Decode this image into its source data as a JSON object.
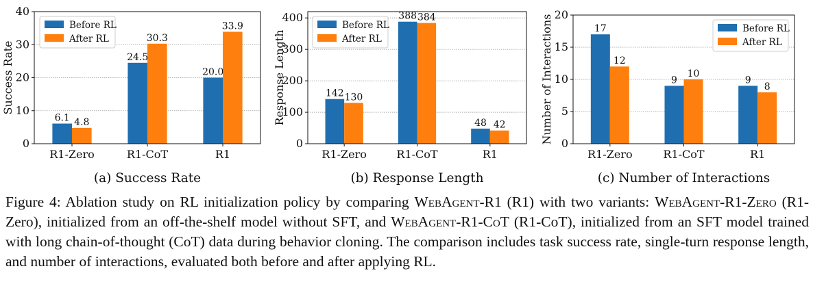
{
  "chart_data": [
    {
      "type": "bar",
      "categories": [
        "R1-Zero",
        "R1-CoT",
        "R1"
      ],
      "series": [
        {
          "name": "Before RL",
          "values": [
            6.1,
            24.5,
            20.0
          ],
          "labels": [
            "6.1",
            "24.5",
            "20.0"
          ],
          "color": "#1f6fb0"
        },
        {
          "name": "After RL",
          "values": [
            4.8,
            30.3,
            33.9
          ],
          "labels": [
            "4.8",
            "30.3",
            "33.9"
          ],
          "color": "#ff7f0e"
        }
      ],
      "ylabel": "Success Rate",
      "ylim": [
        0,
        40
      ],
      "yticks": [
        0,
        10,
        20,
        30,
        40
      ],
      "grid": true,
      "legend": "top-left",
      "subcaption": "(a) Success Rate"
    },
    {
      "type": "bar",
      "categories": [
        "R1-Zero",
        "R1-CoT",
        "R1"
      ],
      "series": [
        {
          "name": "Before RL",
          "values": [
            142,
            388,
            48
          ],
          "labels": [
            "142",
            "388",
            "48"
          ],
          "color": "#1f6fb0"
        },
        {
          "name": "After RL",
          "values": [
            130,
            384,
            42
          ],
          "labels": [
            "130",
            "384",
            "42"
          ],
          "color": "#ff7f0e"
        }
      ],
      "ylabel": "Response Length",
      "ylim": [
        0,
        420
      ],
      "yticks": [
        0,
        100,
        200,
        300,
        400
      ],
      "grid": true,
      "legend": "top-left",
      "subcaption": "(b) Response Length"
    },
    {
      "type": "bar",
      "categories": [
        "R1-Zero",
        "R1-CoT",
        "R1"
      ],
      "series": [
        {
          "name": "Before RL",
          "values": [
            17,
            9,
            9
          ],
          "labels": [
            "17",
            "9",
            "9"
          ],
          "color": "#1f6fb0"
        },
        {
          "name": "After RL",
          "values": [
            12,
            10,
            8
          ],
          "labels": [
            "12",
            "10",
            "8"
          ],
          "color": "#ff7f0e"
        }
      ],
      "ylabel": "Number of Interactions",
      "ylim": [
        0,
        20
      ],
      "yticks": [
        0,
        5,
        10,
        15,
        20
      ],
      "grid": true,
      "legend": "top-right",
      "subcaption": "(c) Number of Interactions"
    }
  ],
  "caption": {
    "label": "Figure 4:",
    "t1": "Ablation study on RL initialization policy by comparing ",
    "n1": "WebAgent-R1",
    "t2": " (R1) with two variants: ",
    "n2": "WebAgent-R1-Zero",
    "t3": " (R1-Zero), initialized from an off-the-shelf model without SFT, and ",
    "n3": "WebAgent-R1-CoT",
    "t4": " (R1-CoT), initialized from an SFT model trained with long chain-of-thought (CoT) data during behavior cloning. The comparison includes task success rate, single-turn response length, and number of interactions, evaluated both before and after applying RL."
  }
}
